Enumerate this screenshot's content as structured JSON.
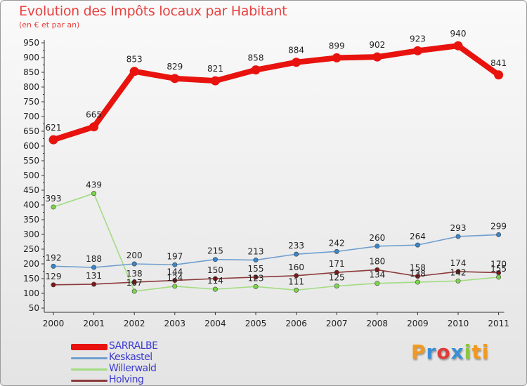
{
  "chart_data": {
    "type": "line",
    "title": "Evolution des Impôts locaux par Habitant",
    "subtitle": "(en € et par an)",
    "xlabel": "",
    "ylabel": "",
    "categories": [
      "2000",
      "2001",
      "2002",
      "2003",
      "2004",
      "2005",
      "2006",
      "2007",
      "2008",
      "2009",
      "2010",
      "2011"
    ],
    "ylim": [
      50,
      950
    ],
    "yticks": [
      50,
      100,
      150,
      200,
      250,
      300,
      350,
      400,
      450,
      500,
      550,
      600,
      650,
      700,
      750,
      800,
      850,
      900,
      950
    ],
    "grid": false,
    "legend_position": "bottom-left",
    "series": [
      {
        "name": "SARRALBE",
        "color": "#e8130e",
        "marker": "#e8130e",
        "values": [
          621,
          665,
          853,
          829,
          821,
          858,
          884,
          899,
          902,
          923,
          940,
          841
        ],
        "labels": [
          "621",
          "665",
          "853",
          "829",
          "821",
          "858",
          "884",
          "899",
          "902",
          "923",
          "940",
          "841"
        ]
      },
      {
        "name": "Keskastel",
        "color": "#6f9fcf",
        "marker": "#3a86c8",
        "values": [
          192,
          188,
          200,
          197,
          215,
          213,
          233,
          242,
          260,
          264,
          293,
          299
        ],
        "labels": [
          "192",
          "188",
          "200",
          "197",
          "215",
          "213",
          "233",
          "242",
          "260",
          "264",
          "293",
          "299"
        ]
      },
      {
        "name": "Willerwald",
        "color": "#a2dc80",
        "marker": "#7bd64a",
        "values": [
          393,
          439,
          107,
          124,
          114,
          123,
          111,
          125,
          134,
          138,
          142,
          155
        ],
        "labels": [
          "393",
          "439",
          "107",
          "124",
          "114",
          "123",
          "111",
          "125",
          "134",
          "138",
          "142",
          "155"
        ]
      },
      {
        "name": "Holving",
        "color": "#8c3a3a",
        "marker": "#7a1a1a",
        "values": [
          129,
          131,
          138,
          144,
          150,
          155,
          160,
          171,
          180,
          158,
          174,
          170
        ],
        "labels": [
          "129",
          "131",
          "138",
          "144",
          "150",
          "155",
          "160",
          "171",
          "180",
          "158",
          "174",
          "170"
        ]
      }
    ]
  },
  "branding": {
    "logo_letters": [
      "P",
      "r",
      "o",
      "x",
      "i",
      "t",
      "i"
    ]
  }
}
